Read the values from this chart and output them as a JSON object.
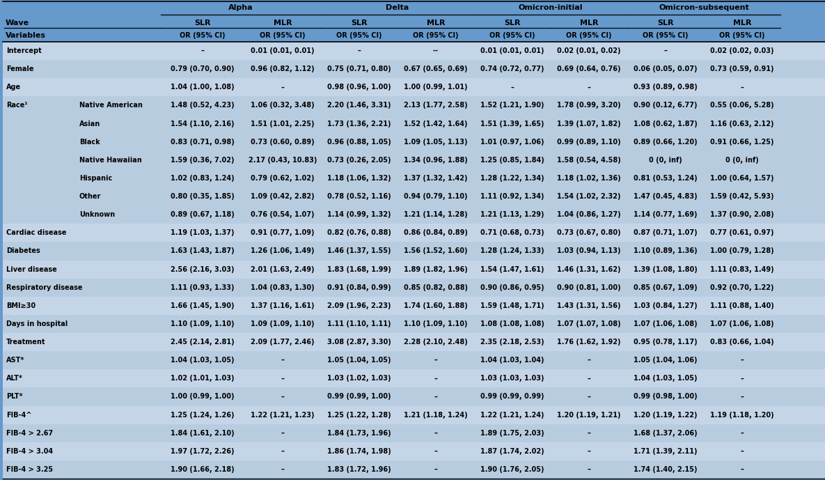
{
  "bg_color": "#6699CC",
  "col_groups": [
    "Alpha",
    "Delta",
    "Omicron-initial",
    "Omicron-subsequent"
  ],
  "rows": [
    [
      "Intercept",
      "",
      "–",
      "0.01 (0.01, 0.01)",
      "–",
      "--",
      "0.01 (0.01, 0.01)",
      "0.02 (0.01, 0.02)",
      "–",
      "0.02 (0.02, 0.03)"
    ],
    [
      "Female",
      "",
      "0.79 (0.70, 0.90)",
      "0.96 (0.82, 1.12)",
      "0.75 (0.71, 0.80)",
      "0.67 (0.65, 0.69)",
      "0.74 (0.72, 0.77)",
      "0.69 (0.64, 0.76)",
      "0.06 (0.05, 0.07)",
      "0.73 (0.59, 0.91)"
    ],
    [
      "Age",
      "",
      "1.04 (1.00, 1.08)",
      "–",
      "0.98 (0.96, 1.00)",
      "1.00 (0.99, 1.01)",
      "–",
      "–",
      "0.93 (0.89, 0.98)",
      "–"
    ],
    [
      "Race¹",
      "Native American",
      "1.48 (0.52, 4.23)",
      "1.06 (0.32, 3.48)",
      "2.20 (1.46, 3.31)",
      "2.13 (1.77, 2.58)",
      "1.52 (1.21, 1.90)",
      "1.78 (0.99, 3.20)",
      "0.90 (0.12, 6.77)",
      "0.55 (0.06, 5.28)"
    ],
    [
      "",
      "Asian",
      "1.54 (1.10, 2.16)",
      "1.51 (1.01, 2.25)",
      "1.73 (1.36, 2.21)",
      "1.52 (1.42, 1.64)",
      "1.51 (1.39, 1.65)",
      "1.39 (1.07, 1.82)",
      "1.08 (0.62, 1.87)",
      "1.16 (0.63, 2.12)"
    ],
    [
      "",
      "Black",
      "0.83 (0.71, 0.98)",
      "0.73 (0.60, 0.89)",
      "0.96 (0.88, 1.05)",
      "1.09 (1.05, 1.13)",
      "1.01 (0.97, 1.06)",
      "0.99 (0.89, 1.10)",
      "0.89 (0.66, 1.20)",
      "0.91 (0.66, 1.25)"
    ],
    [
      "",
      "Native Hawaiian",
      "1.59 (0.36, 7.02)",
      "2.17 (0.43, 10.83)",
      "0.73 (0.26, 2.05)",
      "1.34 (0.96, 1.88)",
      "1.25 (0.85, 1.84)",
      "1.58 (0.54, 4.58)",
      "0 (0, inf)",
      "0 (0, inf)"
    ],
    [
      "",
      "Hispanic",
      "1.02 (0.83, 1.24)",
      "0.79 (0.62, 1.02)",
      "1.18 (1.06, 1.32)",
      "1.37 (1.32, 1.42)",
      "1.28 (1.22, 1.34)",
      "1.18 (1.02, 1.36)",
      "0.81 (0.53, 1.24)",
      "1.00 (0.64, 1.57)"
    ],
    [
      "",
      "Other",
      "0.80 (0.35, 1.85)",
      "1.09 (0.42, 2.82)",
      "0.78 (0.52, 1.16)",
      "0.94 (0.79, 1.10)",
      "1.11 (0.92, 1.34)",
      "1.54 (1.02, 2.32)",
      "1.47 (0.45, 4.83)",
      "1.59 (0.42, 5.93)"
    ],
    [
      "",
      "Unknown",
      "0.89 (0.67, 1.18)",
      "0.76 (0.54, 1.07)",
      "1.14 (0.99, 1.32)",
      "1.21 (1.14, 1.28)",
      "1.21 (1.13, 1.29)",
      "1.04 (0.86, 1.27)",
      "1.14 (0.77, 1.69)",
      "1.37 (0.90, 2.08)"
    ],
    [
      "Cardiac disease",
      "",
      "1.19 (1.03, 1.37)",
      "0.91 (0.77, 1.09)",
      "0.82 (0.76, 0.88)",
      "0.86 (0.84, 0.89)",
      "0.71 (0.68, 0.73)",
      "0.73 (0.67, 0.80)",
      "0.87 (0.71, 1.07)",
      "0.77 (0.61, 0.97)"
    ],
    [
      "Diabetes",
      "",
      "1.63 (1.43, 1.87)",
      "1.26 (1.06, 1.49)",
      "1.46 (1.37, 1.55)",
      "1.56 (1.52, 1.60)",
      "1.28 (1.24, 1.33)",
      "1.03 (0.94, 1.13)",
      "1.10 (0.89, 1.36)",
      "1.00 (0.79, 1.28)"
    ],
    [
      "Liver disease",
      "",
      "2.56 (2.16, 3.03)",
      "2.01 (1.63, 2.49)",
      "1.83 (1.68, 1.99)",
      "1.89 (1.82, 1.96)",
      "1.54 (1.47, 1.61)",
      "1.46 (1.31, 1.62)",
      "1.39 (1.08, 1.80)",
      "1.11 (0.83, 1.49)"
    ],
    [
      "Respiratory disease",
      "",
      "1.11 (0.93, 1.33)",
      "1.04 (0.83, 1.30)",
      "0.91 (0.84, 0.99)",
      "0.85 (0.82, 0.88)",
      "0.90 (0.86, 0.95)",
      "0.90 (0.81, 1.00)",
      "0.85 (0.67, 1.09)",
      "0.92 (0.70, 1.22)"
    ],
    [
      "BMI≥30",
      "",
      "1.66 (1.45, 1.90)",
      "1.37 (1.16, 1.61)",
      "2.09 (1.96, 2.23)",
      "1.74 (1.60, 1.88)",
      "1.59 (1.48, 1.71)",
      "1.43 (1.31, 1.56)",
      "1.03 (0.84, 1.27)",
      "1.11 (0.88, 1.40)"
    ],
    [
      "Days in hospital",
      "",
      "1.10 (1.09, 1.10)",
      "1.09 (1.09, 1.10)",
      "1.11 (1.10, 1.11)",
      "1.10 (1.09, 1.10)",
      "1.08 (1.08, 1.08)",
      "1.07 (1.07, 1.08)",
      "1.07 (1.06, 1.08)",
      "1.07 (1.06, 1.08)"
    ],
    [
      "Treatment",
      "",
      "2.45 (2.14, 2.81)",
      "2.09 (1.77, 2.46)",
      "3.08 (2.87, 3.30)",
      "2.28 (2.10, 2.48)",
      "2.35 (2.18, 2.53)",
      "1.76 (1.62, 1.92)",
      "0.95 (0.78, 1.17)",
      "0.83 (0.66, 1.04)"
    ],
    [
      "AST*",
      "",
      "1.04 (1.03, 1.05)",
      "–",
      "1.05 (1.04, 1.05)",
      "–",
      "1.04 (1.03, 1.04)",
      "–",
      "1.05 (1.04, 1.06)",
      "–"
    ],
    [
      "ALT*",
      "",
      "1.02 (1.01, 1.03)",
      "–",
      "1.03 (1.02, 1.03)",
      "–",
      "1.03 (1.03, 1.03)",
      "–",
      "1.04 (1.03, 1.05)",
      "–"
    ],
    [
      "PLT*",
      "",
      "1.00 (0.99, 1.00)",
      "–",
      "0.99 (0.99, 1.00)",
      "–",
      "0.99 (0.99, 0.99)",
      "–",
      "0.99 (0.98, 1.00)",
      "–"
    ],
    [
      "FIB-4^",
      "",
      "1.25 (1.24, 1.26)",
      "1.22 (1.21, 1.23)",
      "1.25 (1.22, 1.28)",
      "1.21 (1.18, 1.24)",
      "1.22 (1.21, 1.24)",
      "1.20 (1.19, 1.21)",
      "1.20 (1.19, 1.22)",
      "1.19 (1.18, 1.20)"
    ],
    [
      "FIB-4 > 2.67",
      "",
      "1.84 (1.61, 2.10)",
      "–",
      "1.84 (1.73, 1.96)",
      "–",
      "1.89 (1.75, 2.03)",
      "–",
      "1.68 (1.37, 2.06)",
      "–"
    ],
    [
      "FIB-4 > 3.04",
      "",
      "1.97 (1.72, 2.26)",
      "–",
      "1.86 (1.74, 1.98)",
      "–",
      "1.87 (1.74, 2.02)",
      "–",
      "1.71 (1.39, 2.11)",
      "–"
    ],
    [
      "FIB-4 > 3.25",
      "",
      "1.90 (1.66, 2.18)",
      "–",
      "1.83 (1.72, 1.96)",
      "–",
      "1.90 (1.76, 2.05)",
      "–",
      "1.74 (1.40, 2.15)",
      "–"
    ]
  ],
  "row_colors_pattern": [
    "#C5D5E8",
    "#C5D5E8",
    "#C5D5E8",
    "#AABFDD",
    "#AABFDD",
    "#AABFDD",
    "#AABFDD",
    "#AABFDD",
    "#AABFDD",
    "#AABFDD",
    "#C5D5E8",
    "#AABFDD",
    "#C5D5E8",
    "#AABFDD",
    "#C5D5E8",
    "#AABFDD",
    "#C5D5E8",
    "#AABFDD",
    "#C5D5E8",
    "#AABFDD",
    "#C5D5E8",
    "#AABFDD",
    "#C5D5E8",
    "#AABFDD"
  ],
  "font_size": 7.0,
  "header_font_size": 7.5
}
